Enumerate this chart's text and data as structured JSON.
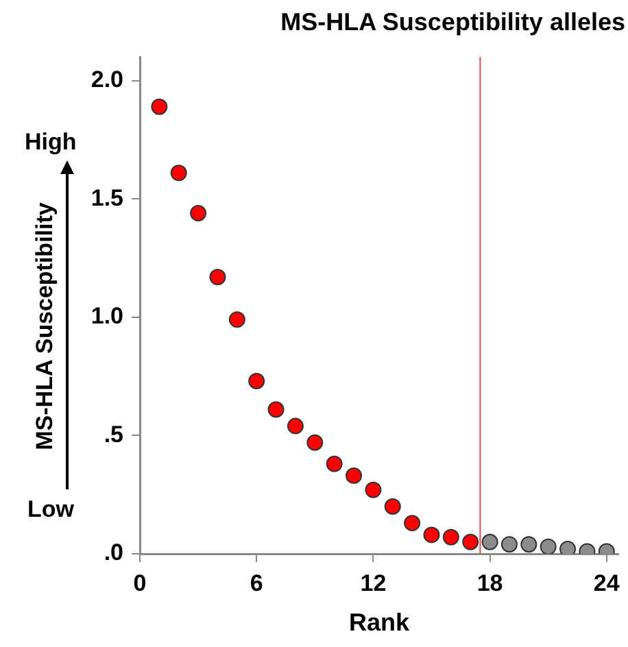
{
  "chart_data": {
    "type": "scatter",
    "title": "MS-HLA Susceptibility alleles",
    "xlabel": "Rank",
    "ylabel": "MS-HLA Susceptibility",
    "annotations": [
      "High",
      "Low"
    ],
    "series": [
      {
        "color": "#ff0000",
        "x": [
          1,
          2,
          3,
          4,
          5,
          6,
          7,
          8,
          9,
          10,
          11,
          12,
          13,
          14,
          15,
          16,
          17
        ],
        "values": [
          1.89,
          1.61,
          1.44,
          1.17,
          0.99,
          0.73,
          0.61,
          0.54,
          0.47,
          0.38,
          0.33,
          0.27,
          0.2,
          0.13,
          0.08,
          0.07,
          0.05
        ]
      },
      {
        "color": "#8c8c8c",
        "x": [
          18,
          19,
          20,
          21,
          22,
          23,
          24
        ],
        "values": [
          0.05,
          0.04,
          0.04,
          0.03,
          0.02,
          0.01,
          0.01
        ]
      }
    ],
    "xlim": [
      0,
      24.6
    ],
    "xticks": [
      0,
      6,
      12,
      18,
      24
    ],
    "ylim": [
      0,
      2.1
    ],
    "yticks": [
      {
        "value": 0,
        "label": ".0"
      },
      {
        "value": 0.5,
        "label": ".5"
      },
      {
        "value": 1,
        "label": "1.0"
      },
      {
        "value": 1.5,
        "label": "1.5"
      },
      {
        "value": 2,
        "label": "2.0"
      }
    ],
    "ref_lines": [
      {
        "axis": "x",
        "value": 17.5,
        "color": "#e8474c"
      }
    ],
    "grid": false,
    "legend": false,
    "marker": "circle"
  }
}
